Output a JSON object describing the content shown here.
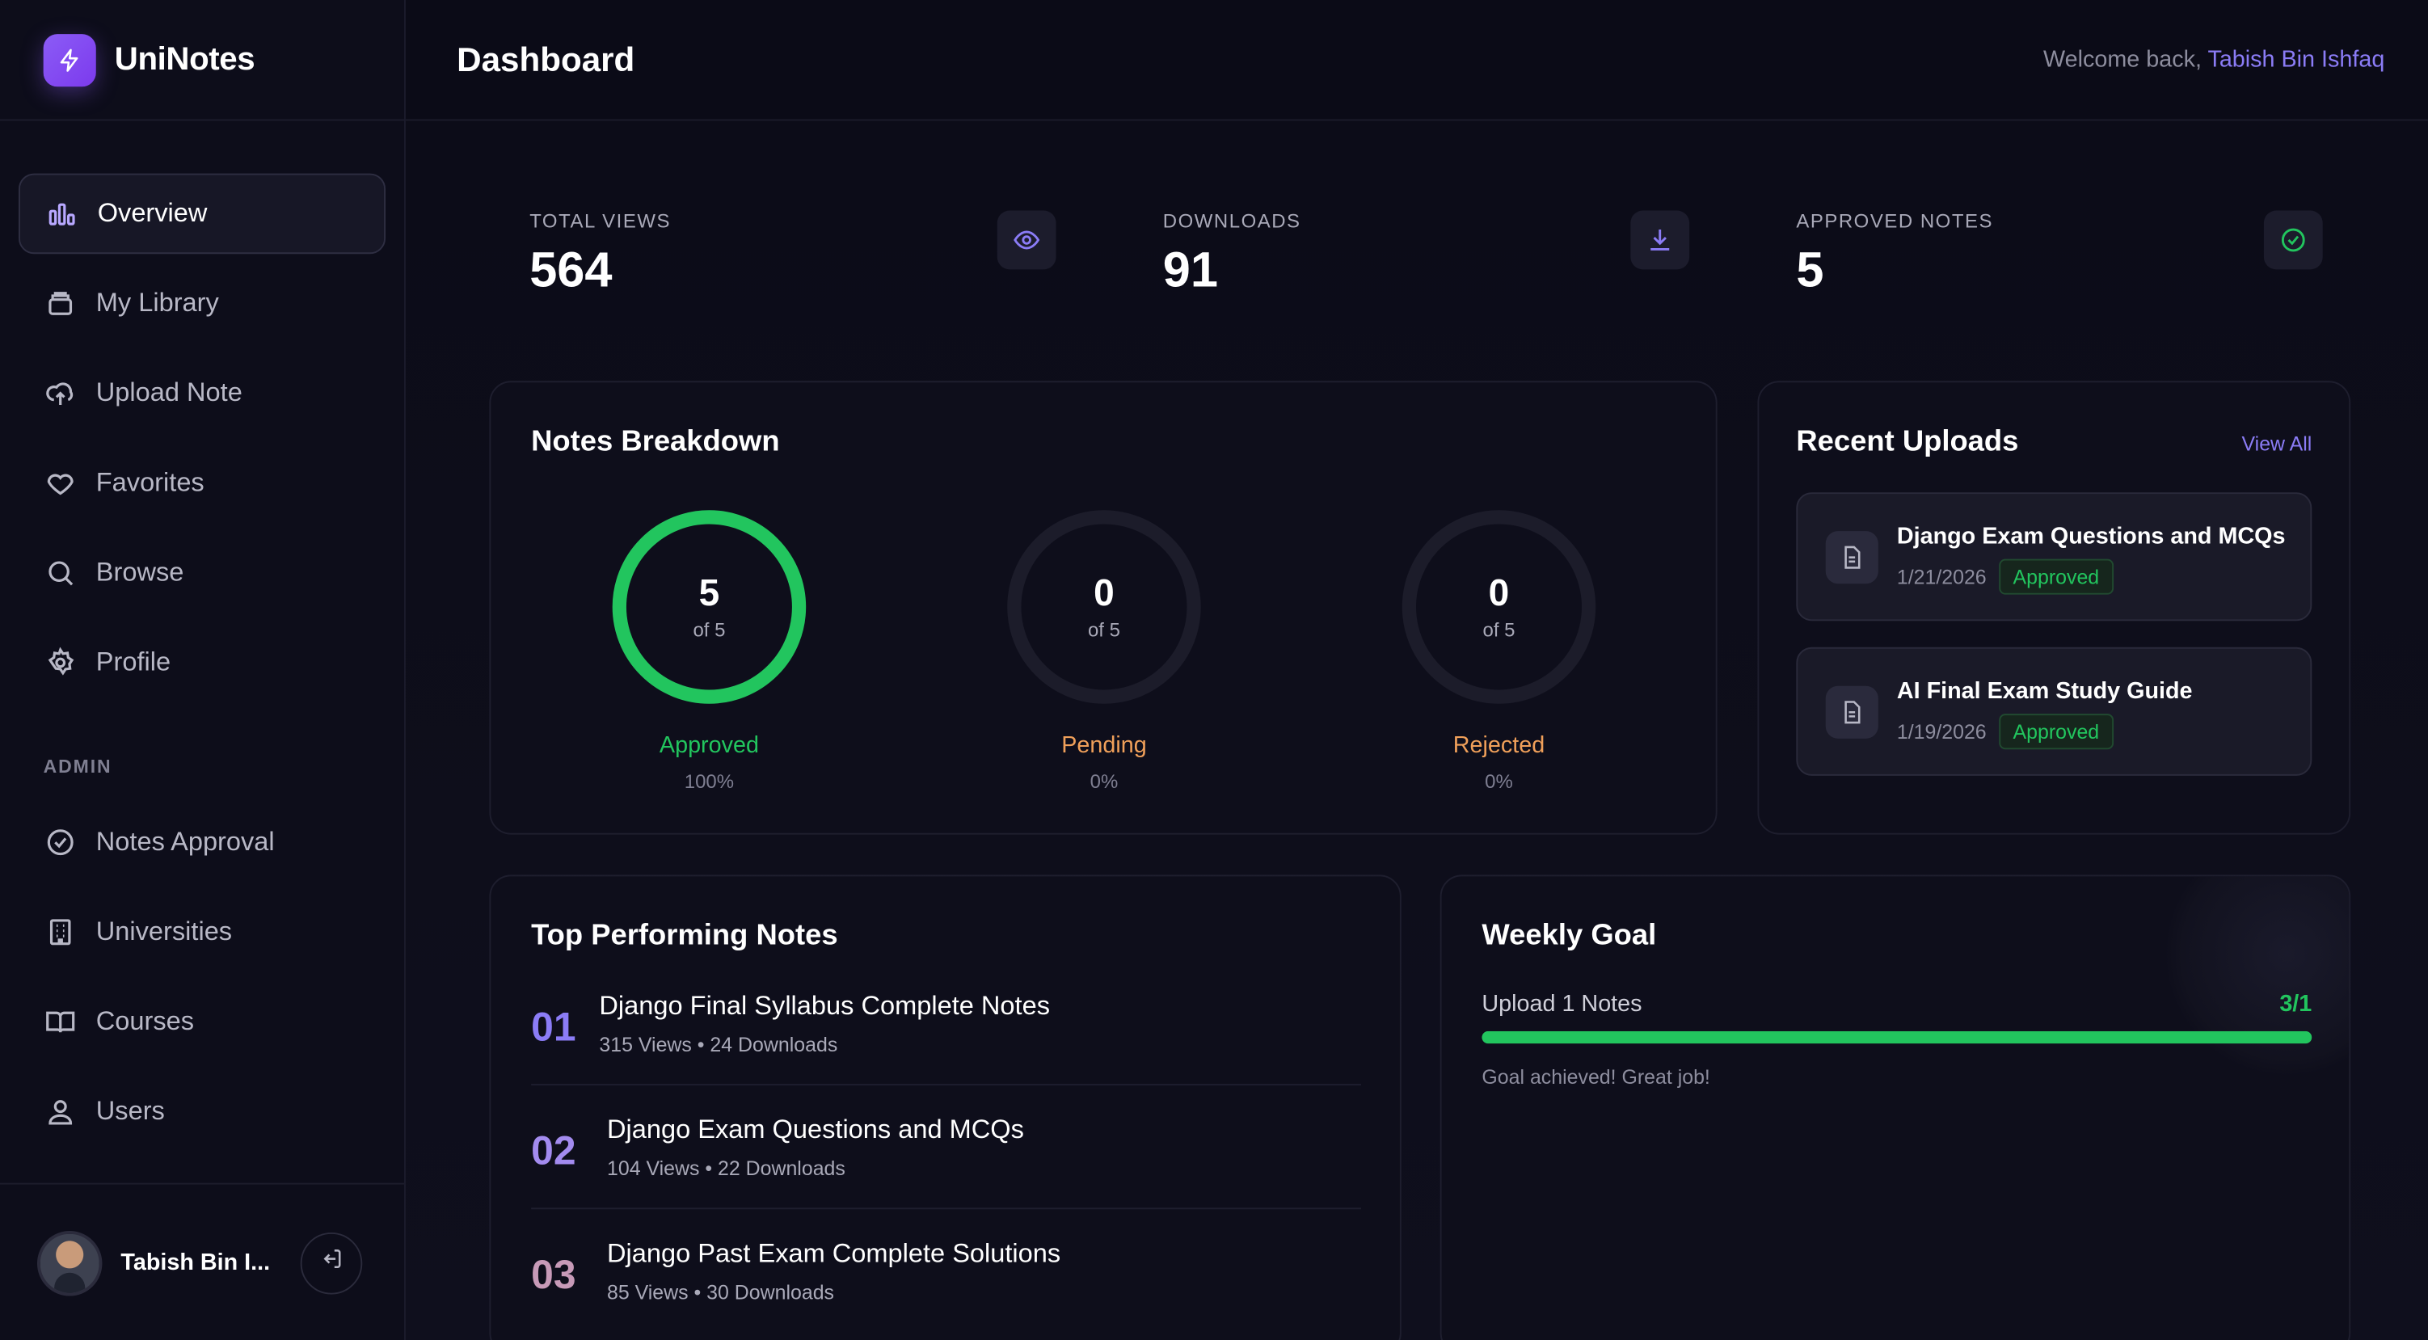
{
  "app": {
    "name": "UniNotes"
  },
  "header": {
    "title": "Dashboard",
    "welcome_prefix": "Welcome back,",
    "user_name": "Tabish Bin Ishfaq"
  },
  "sidebar": {
    "items": [
      {
        "label": "Overview",
        "icon": "bar-chart-icon",
        "active": true
      },
      {
        "label": "My Library",
        "icon": "library-icon"
      },
      {
        "label": "Upload Note",
        "icon": "cloud-upload-icon"
      },
      {
        "label": "Favorites",
        "icon": "heart-icon"
      },
      {
        "label": "Browse",
        "icon": "search-icon"
      },
      {
        "label": "Profile",
        "icon": "gear-icon"
      }
    ],
    "admin_section": "ADMIN",
    "admin_items": [
      {
        "label": "Notes Approval",
        "icon": "check-circle-icon"
      },
      {
        "label": "Universities",
        "icon": "building-icon"
      },
      {
        "label": "Courses",
        "icon": "book-open-icon"
      },
      {
        "label": "Users",
        "icon": "users-icon"
      }
    ],
    "user": {
      "name": "Tabish Bin I..."
    }
  },
  "stats": [
    {
      "label": "TOTAL VIEWS",
      "value": "564",
      "icon": "eye-icon"
    },
    {
      "label": "DOWNLOADS",
      "value": "91",
      "icon": "download-icon"
    },
    {
      "label": "APPROVED NOTES",
      "value": "5",
      "icon": "check-circle-icon"
    }
  ],
  "breakdown": {
    "title": "Notes Breakdown",
    "rings": [
      {
        "value": "5",
        "of": "of 5",
        "label": "Approved",
        "pct": "100%",
        "fraction": 1.0,
        "color": "#22c55e"
      },
      {
        "value": "0",
        "of": "of 5",
        "label": "Pending",
        "pct": "0%",
        "fraction": 0,
        "color": "#f0a05a"
      },
      {
        "value": "0",
        "of": "of 5",
        "label": "Rejected",
        "pct": "0%",
        "fraction": 0,
        "color": "#f0a05a"
      }
    ]
  },
  "recent": {
    "title": "Recent Uploads",
    "view_all": "View All",
    "items": [
      {
        "title": "Django Exam Questions and MCQs",
        "date": "1/21/2026",
        "status": "Approved"
      },
      {
        "title": "AI Final Exam Study Guide",
        "date": "1/19/2026",
        "status": "Approved"
      }
    ]
  },
  "top_notes": {
    "title": "Top Performing Notes",
    "items": [
      {
        "rank": "01",
        "title": "Django Final Syllabus Complete Notes",
        "meta": "315 Views  •  24 Downloads",
        "color": "#8b7cf6"
      },
      {
        "rank": "02",
        "title": "Django Exam Questions and MCQs",
        "meta": "104 Views  •  22 Downloads",
        "color": "#a38bef"
      },
      {
        "rank": "03",
        "title": "Django Past Exam Complete Solutions",
        "meta": "85 Views  •  30 Downloads",
        "color": "#c79ab8"
      }
    ]
  },
  "goal": {
    "title": "Weekly Goal",
    "label": "Upload 1 Notes",
    "value": "3/1",
    "progress": 1.0,
    "message": "Goal achieved! Great job!"
  },
  "colors": {
    "accent": "#8b5cf6",
    "success": "#22c55e",
    "warning": "#f0a05a"
  }
}
